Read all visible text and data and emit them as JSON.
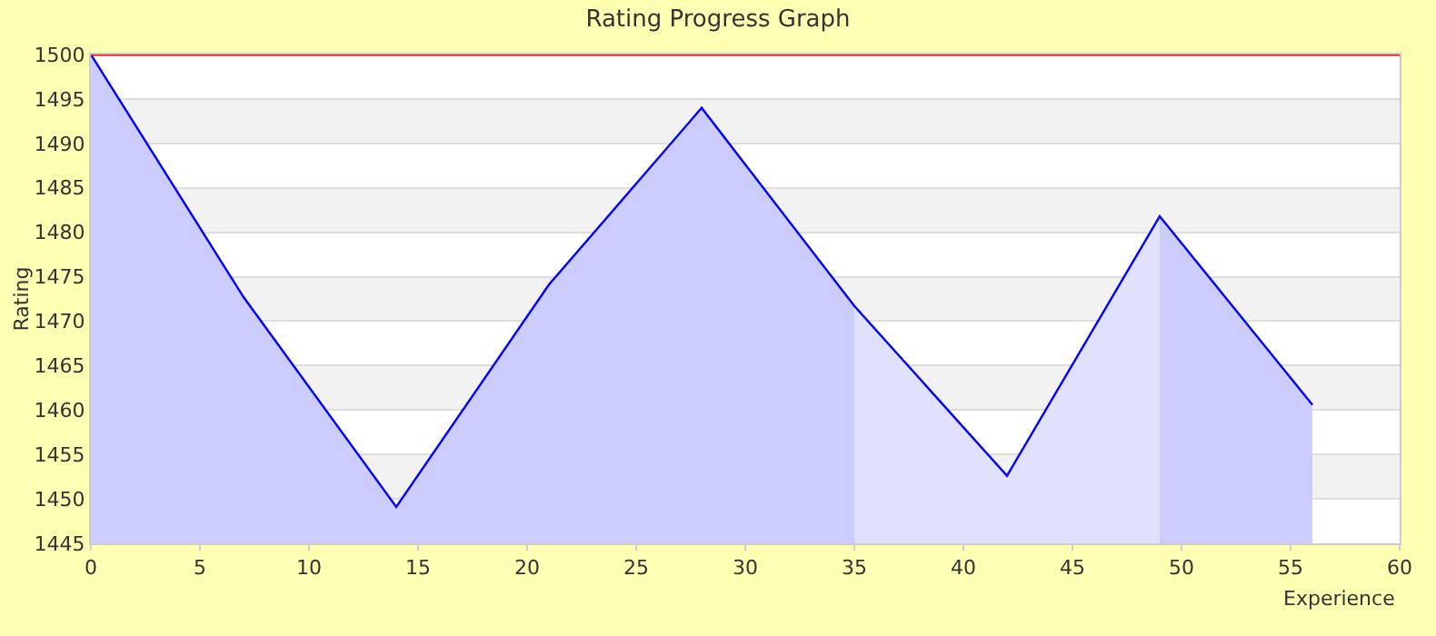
{
  "chart_data": {
    "type": "area",
    "title": "Rating Progress Graph",
    "xlabel": "Experience",
    "ylabel": "Rating",
    "series": [
      {
        "x": [
          0,
          7,
          14,
          21,
          28,
          35
        ],
        "values": [
          1500,
          1472.7,
          1449.1,
          1474.1,
          1494.0,
          1471.7
        ],
        "color": "#ccccff"
      },
      {
        "x": [
          35,
          42,
          49
        ],
        "values": [
          1471.7,
          1452.6,
          1481.8
        ],
        "color": "#e0e0ff"
      },
      {
        "x": [
          49,
          56
        ],
        "values": [
          1481.8,
          1460.6
        ],
        "color": "#ccccff"
      },
      {
        "type": "line",
        "x": [
          0,
          7,
          14,
          21,
          28,
          35,
          42,
          49,
          56
        ],
        "values": [
          1500,
          1472.7,
          1449.1,
          1474.1,
          1494.0,
          1471.7,
          1452.6,
          1481.8,
          1460.6
        ],
        "color": "#0000ff"
      }
    ],
    "xlim": [
      0,
      60
    ],
    "xticks": [
      0,
      5,
      10,
      15,
      20,
      25,
      30,
      35,
      40,
      45,
      50,
      55,
      60
    ],
    "ylim": [
      1445,
      1500
    ],
    "yticks": [
      1445,
      1450,
      1455,
      1460,
      1465,
      1470,
      1475,
      1480,
      1485,
      1490,
      1495,
      1500
    ],
    "ref_lines": [
      {
        "axis": "y",
        "value": 1500,
        "label": null,
        "color": "#ff0000"
      }
    ],
    "grid": "y",
    "marker": "none",
    "line_style": "solid"
  }
}
